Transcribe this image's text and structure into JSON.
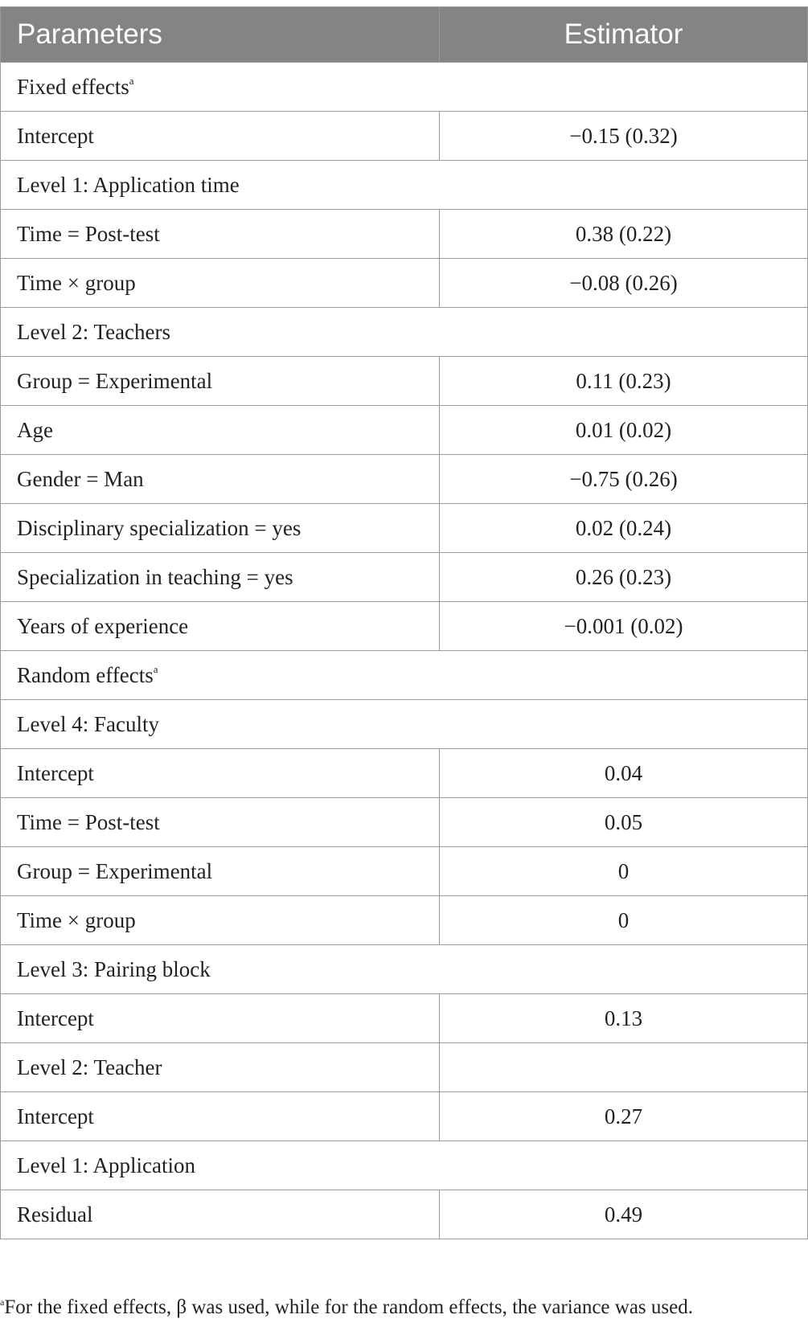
{
  "header": {
    "col1": "Parameters",
    "col2": "Estimator"
  },
  "sections": {
    "fixed": {
      "label": "Fixed effects",
      "marker": "a"
    },
    "random": {
      "label": "Random effects",
      "marker": "a"
    }
  },
  "rows": {
    "fixed_intercept": {
      "label": "Intercept",
      "value": "−0.15 (0.32)"
    },
    "level1_app_time": {
      "label": "Level 1: Application time"
    },
    "time_post": {
      "label": "Time = Post-test",
      "value": "0.38 (0.22)"
    },
    "time_group": {
      "label": "Time × group",
      "value": "−0.08 (0.26)"
    },
    "level2_teachers": {
      "label": "Level 2: Teachers"
    },
    "group_exp": {
      "label": "Group = Experimental",
      "value": "0.11 (0.23)"
    },
    "age": {
      "label": "Age",
      "value": "0.01 (0.02)"
    },
    "gender": {
      "label": "Gender = Man",
      "value": "−0.75 (0.26)"
    },
    "disc_spec": {
      "label": "Disciplinary specialization = yes",
      "value": "0.02 (0.24)"
    },
    "teach_spec": {
      "label": "Specialization in teaching = yes",
      "value": "0.26 (0.23)"
    },
    "years_exp": {
      "label": "Years of experience",
      "value": "−0.001 (0.02)"
    },
    "level4_faculty": {
      "label": "Level 4: Faculty"
    },
    "r_intercept_fac": {
      "label": "Intercept",
      "value": "0.04"
    },
    "r_time_post": {
      "label": "Time = Post-test",
      "value": "0.05"
    },
    "r_group_exp": {
      "label": "Group = Experimental",
      "value": "0"
    },
    "r_time_group": {
      "label": "Time × group",
      "value": "0"
    },
    "level3_pairing": {
      "label": "Level 3: Pairing block"
    },
    "r_intercept_pair": {
      "label": "Intercept",
      "value": "0.13"
    },
    "level2_teacher": {
      "label": "Level 2: Teacher",
      "value": ""
    },
    "r_intercept_teacher": {
      "label": "Intercept",
      "value": "0.27"
    },
    "level1_application": {
      "label": "Level 1: Application"
    },
    "residual": {
      "label": "Residual",
      "value": "0.49"
    }
  },
  "footnote": {
    "marker": "a",
    "text": "For the fixed effects, β was used, while for the random effects, the variance was used."
  }
}
